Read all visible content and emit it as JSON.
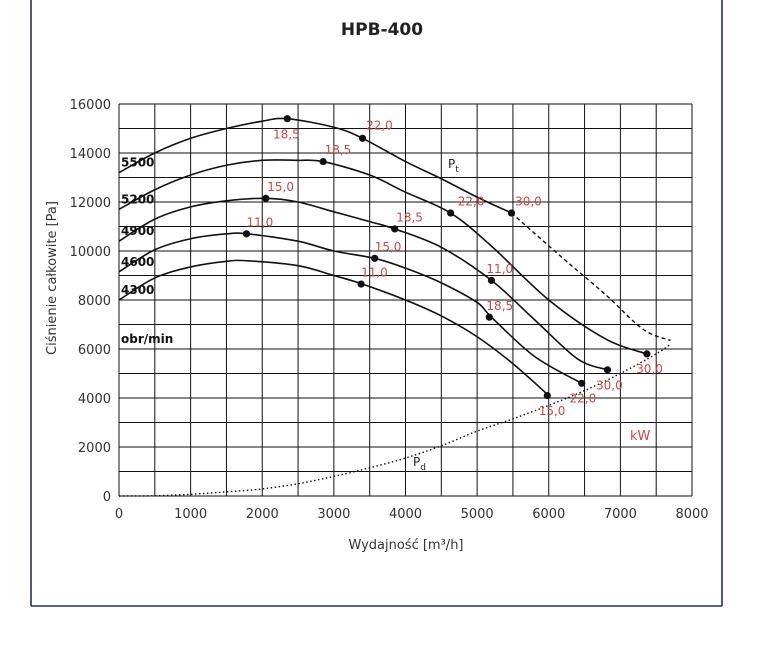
{
  "chart_data": {
    "type": "line",
    "title": "HPB-400",
    "xlabel": "Wydajność [m³/h]",
    "ylabel": "Ciśnienie całkowite [Pa]",
    "xlim": [
      0,
      8000
    ],
    "ylim": [
      0,
      16000
    ],
    "x_ticks": [
      0,
      1000,
      2000,
      3000,
      4000,
      5000,
      6000,
      7000,
      8000
    ],
    "y_ticks": [
      0,
      2000,
      4000,
      6000,
      8000,
      10000,
      12000,
      14000,
      16000
    ],
    "grid": true,
    "speed_unit_label": "obr/min",
    "power_unit_label": "kW",
    "total_pressure_label": "P",
    "total_pressure_sub": "t",
    "dynamic_pressure_label": "P",
    "dynamic_pressure_sub": "d",
    "series": [
      {
        "name": "4300",
        "points": [
          [
            0,
            8000
          ],
          [
            500,
            8900
          ],
          [
            1000,
            9350
          ],
          [
            1500,
            9580
          ],
          [
            1800,
            9600
          ],
          [
            2500,
            9400
          ],
          [
            3000,
            9000
          ],
          [
            3400,
            8650
          ],
          [
            4000,
            8000
          ],
          [
            4500,
            7350
          ],
          [
            5000,
            6500
          ],
          [
            5500,
            5400
          ],
          [
            6000,
            4100
          ]
        ]
      },
      {
        "name": "4600",
        "points": [
          [
            0,
            9150
          ],
          [
            500,
            10050
          ],
          [
            1000,
            10500
          ],
          [
            1500,
            10700
          ],
          [
            1800,
            10700
          ],
          [
            2500,
            10400
          ],
          [
            3000,
            10000
          ],
          [
            3570,
            9700
          ],
          [
            4000,
            9300
          ],
          [
            4500,
            8700
          ],
          [
            5000,
            7900
          ],
          [
            5200,
            7300
          ],
          [
            5800,
            5700
          ],
          [
            6460,
            4600
          ]
        ]
      },
      {
        "name": "4900",
        "points": [
          [
            0,
            10400
          ],
          [
            500,
            11300
          ],
          [
            1000,
            11800
          ],
          [
            1500,
            12050
          ],
          [
            2050,
            12150
          ],
          [
            2500,
            12000
          ],
          [
            3000,
            11600
          ],
          [
            3500,
            11200
          ],
          [
            3850,
            10900
          ],
          [
            4500,
            10150
          ],
          [
            5200,
            8800
          ],
          [
            5800,
            7200
          ],
          [
            6400,
            5600
          ],
          [
            6820,
            5150
          ]
        ]
      },
      {
        "name": "5200",
        "points": [
          [
            0,
            11700
          ],
          [
            500,
            12500
          ],
          [
            1000,
            13100
          ],
          [
            1500,
            13500
          ],
          [
            2000,
            13700
          ],
          [
            2500,
            13700
          ],
          [
            2850,
            13650
          ],
          [
            3500,
            13100
          ],
          [
            4000,
            12400
          ],
          [
            4630,
            11550
          ],
          [
            5200,
            10200
          ],
          [
            6000,
            8000
          ],
          [
            6800,
            6400
          ],
          [
            7370,
            5800
          ]
        ]
      },
      {
        "name": "5500",
        "points": [
          [
            0,
            13200
          ],
          [
            500,
            14000
          ],
          [
            1000,
            14600
          ],
          [
            1500,
            15000
          ],
          [
            2000,
            15300
          ],
          [
            2350,
            15400
          ],
          [
            3000,
            15050
          ],
          [
            3400,
            14600
          ],
          [
            4000,
            13650
          ],
          [
            4500,
            12950
          ],
          [
            5000,
            12200
          ],
          [
            5480,
            11550
          ]
        ]
      }
    ],
    "pt_extension": [
      [
        5480,
        11550
      ],
      [
        6200,
        9700
      ],
      [
        6800,
        8200
      ],
      [
        7320,
        6800
      ],
      [
        7700,
        6350
      ]
    ],
    "pd_curve": [
      [
        0,
        0
      ],
      [
        500,
        10
      ],
      [
        1000,
        70
      ],
      [
        1500,
        170
      ],
      [
        2000,
        290
      ],
      [
        2500,
        500
      ],
      [
        3000,
        800
      ],
      [
        3500,
        1150
      ],
      [
        4000,
        1550
      ],
      [
        4500,
        2050
      ],
      [
        5000,
        2650
      ],
      [
        5500,
        3150
      ],
      [
        6000,
        3700
      ],
      [
        6500,
        4300
      ],
      [
        7000,
        5000
      ],
      [
        7500,
        5800
      ],
      [
        7700,
        6200
      ]
    ],
    "markers": [
      {
        "x": 2350,
        "y": 15400,
        "kw": "18,5",
        "lx": 2150,
        "ly": 14600
      },
      {
        "x": 3400,
        "y": 14600,
        "kw": "22,0",
        "lx": 3450,
        "ly": 14950
      },
      {
        "x": 5480,
        "y": 11550,
        "kw": "30,0",
        "lx": 5530,
        "ly": 11850
      },
      {
        "x": 2850,
        "y": 13650,
        "kw": "18,5",
        "lx": 2870,
        "ly": 13950
      },
      {
        "x": 4630,
        "y": 11550,
        "kw": "22,0",
        "lx": 4730,
        "ly": 11850
      },
      {
        "x": 7370,
        "y": 5800,
        "kw": "30,0",
        "lx": 7220,
        "ly": 5030
      },
      {
        "x": 2050,
        "y": 12150,
        "kw": "15,0",
        "lx": 2070,
        "ly": 12450
      },
      {
        "x": 3850,
        "y": 10900,
        "kw": "18,5",
        "lx": 3870,
        "ly": 11200
      },
      {
        "x": 6820,
        "y": 5150,
        "kw": "30,0",
        "lx": 6660,
        "ly": 4350
      },
      {
        "x": 1780,
        "y": 10700,
        "kw": "11,0",
        "lx": 1780,
        "ly": 11000
      },
      {
        "x": 3570,
        "y": 9700,
        "kw": "15,0",
        "lx": 3570,
        "ly": 10000
      },
      {
        "x": 5200,
        "y": 8800,
        "kw": "11,0",
        "lx": 5130,
        "ly": 9100
      },
      {
        "x": 6460,
        "y": 4600,
        "kw": "22,0",
        "lx": 6290,
        "ly": 3820
      },
      {
        "x": 3380,
        "y": 8650,
        "kw": "11,0",
        "lx": 3380,
        "ly": 8950
      },
      {
        "x": 5170,
        "y": 7300,
        "kw": "18,5",
        "lx": 5130,
        "ly": 7600
      },
      {
        "x": 5980,
        "y": 4100,
        "kw": "15,0",
        "lx": 5860,
        "ly": 3300
      }
    ]
  }
}
